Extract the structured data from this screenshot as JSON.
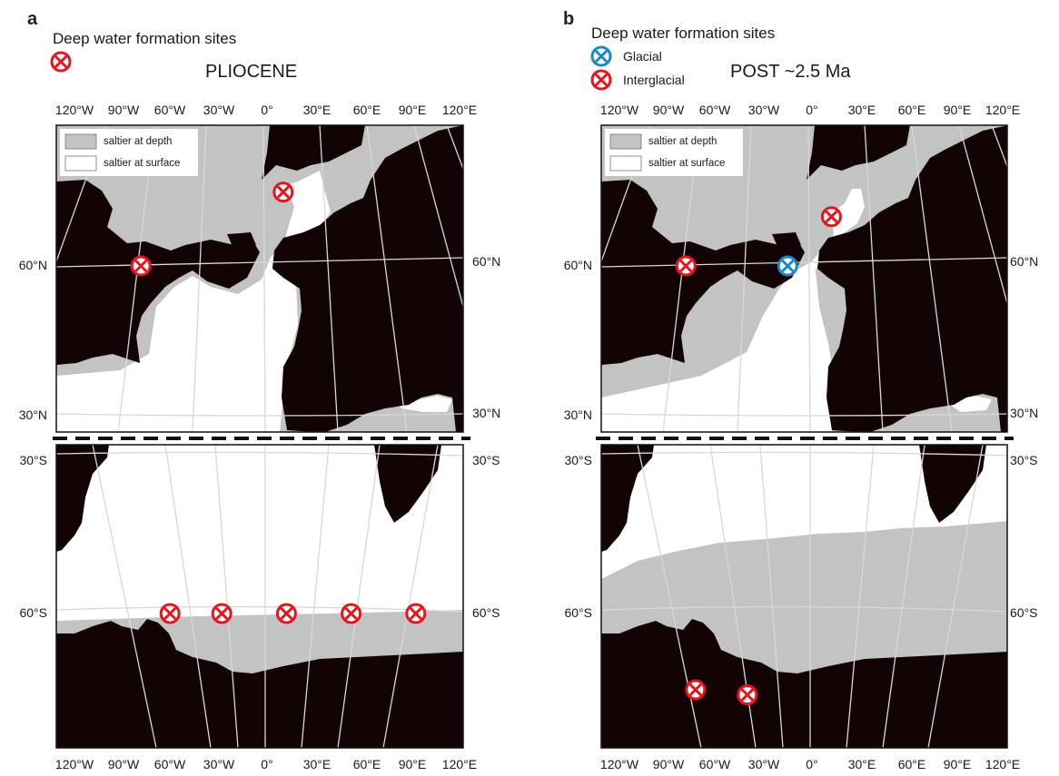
{
  "colors": {
    "land": "#120404",
    "saltier_at_depth": "#c3c3c3",
    "saltier_at_surface": "#ffffff",
    "graticule": "#d8d8d8",
    "interglacial_marker": "#e8141d",
    "glacial_marker": "#1a87c9",
    "dashed_separator": "#111111"
  },
  "legend_box": {
    "saltier_at_depth": "saltier at depth",
    "saltier_at_surface": "saltier at surface"
  },
  "panels": [
    {
      "letter": "a",
      "legend_title": "Deep water formation sites",
      "marker_legend": [],
      "period": "PLIOCENE",
      "lon_ticks_top": [
        "120°W",
        "90°W",
        "60°W",
        "30°W",
        "0°",
        "30°E",
        "60°E",
        "90°E",
        "120°E"
      ],
      "lon_ticks_bottom": [
        "120°W",
        "90°W",
        "60°W",
        "30°W",
        "0°",
        "30°E",
        "60°E",
        "90°E",
        "120°E"
      ],
      "lat_ticks_north": [
        "60°N",
        "30°N"
      ],
      "lat_ticks_south": [
        "30°S",
        "60°S"
      ],
      "sites": [
        {
          "type": "interglacial",
          "lon": 10,
          "lat": 75
        },
        {
          "type": "interglacial",
          "lon": -78,
          "lat": 60
        },
        {
          "type": "interglacial",
          "lon": -60,
          "lat": -60
        },
        {
          "type": "interglacial",
          "lon": -28,
          "lat": -60
        },
        {
          "type": "interglacial",
          "lon": 12,
          "lat": -60
        },
        {
          "type": "interglacial",
          "lon": 52,
          "lat": -60
        },
        {
          "type": "interglacial",
          "lon": 92,
          "lat": -60
        }
      ]
    },
    {
      "letter": "b",
      "legend_title": "Deep water formation sites",
      "marker_legend": [
        {
          "type": "glacial",
          "label": "Glacial"
        },
        {
          "type": "interglacial",
          "label": "Interglacial"
        }
      ],
      "period": "POST ~2.5 Ma",
      "lon_ticks_top": [
        "120°W",
        "90°W",
        "60°W",
        "30°W",
        "0°",
        "30°E",
        "60°E",
        "90°E",
        "120°E"
      ],
      "lon_ticks_bottom": [
        "120°W",
        "90°W",
        "60°W",
        "30°W",
        "0°",
        "30°E",
        "60°E",
        "90°E",
        "120°E"
      ],
      "lat_ticks_north": [
        "60°N",
        "30°N"
      ],
      "lat_ticks_south": [
        "30°S",
        "60°S"
      ],
      "sites": [
        {
          "type": "interglacial",
          "lon": 12,
          "lat": 70
        },
        {
          "type": "interglacial",
          "lon": -78,
          "lat": 60
        },
        {
          "type": "glacial",
          "lon": -15,
          "lat": 60
        },
        {
          "type": "interglacial",
          "lon": -72,
          "lat": -75
        },
        {
          "type": "interglacial",
          "lon": -40,
          "lat": -76
        }
      ]
    }
  ]
}
